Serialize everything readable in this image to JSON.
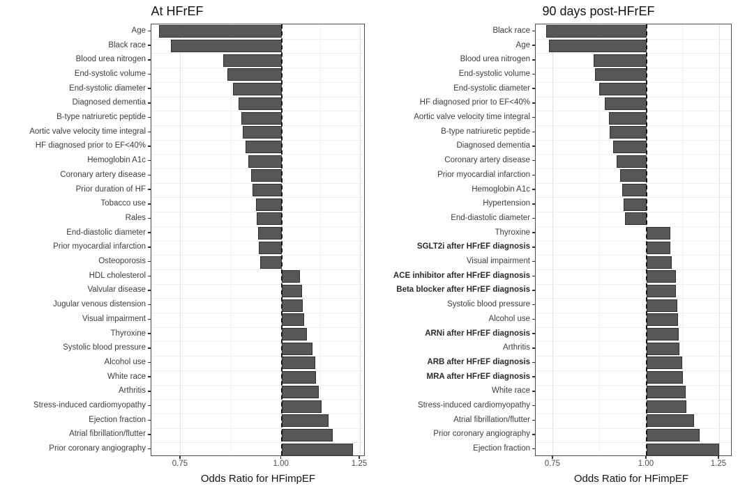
{
  "figure": {
    "background": "#ffffff",
    "bar_fill": "#575757",
    "bar_outline": "#2f2f2f",
    "panel_border_color": "#4d4d4d",
    "grid_major_color": "#e2e2e2",
    "grid_minor_color": "#f1f1f1",
    "baseline_dash_color": "#141414",
    "axis_text_color": "#4d4d4d",
    "category_text_color": "#3d3d3d",
    "title_color": "#141414"
  },
  "chart_data": [
    {
      "type": "bar",
      "orientation": "horizontal",
      "title": "At HFrEF",
      "xlabel": "Odds Ratio for HFimpEF",
      "x_scale": "log",
      "baseline": 1.0,
      "xlim": [
        0.69,
        1.27
      ],
      "x_ticks": [
        0.75,
        1.0,
        1.25
      ],
      "x_tick_labels": [
        "0.75",
        "1.00",
        "1.25"
      ],
      "x_minor_breaks": [
        0.866,
        1.118
      ],
      "grid": true,
      "legend": "none",
      "categories": [
        "Age",
        "Black race",
        "Blood urea nitrogen",
        "End-systolic volume",
        "End-systolic diameter",
        "Diagnosed dementia",
        "B-type natriuretic peptide",
        "Aortic valve velocity time integral",
        "HF diagnosed prior to EF<40%",
        "Hemoglobin A1c",
        "Coronary artery disease",
        "Prior duration of HF",
        "Tobacco use",
        "Rales",
        "End-diastolic diameter",
        "Prior myocardial infarction",
        "Osteoporosis",
        "HDL cholesterol",
        "Valvular disease",
        "Jugular venous distension",
        "Visual impairment",
        "Thyroxine",
        "Systolic blood pressure",
        "Alcohol use",
        "White race",
        "Arthritis",
        "Stress-induced cardiomyopathy",
        "Ejection fraction",
        "Atrial fibrillation/flutter",
        "Prior coronary angiography"
      ],
      "values": [
        0.705,
        0.729,
        0.847,
        0.857,
        0.871,
        0.884,
        0.891,
        0.895,
        0.902,
        0.909,
        0.916,
        0.92,
        0.929,
        0.931,
        0.935,
        0.937,
        0.941,
        1.053,
        1.059,
        1.063,
        1.067,
        1.074,
        1.093,
        1.1,
        1.102,
        1.111,
        1.12,
        1.143,
        1.156,
        1.225
      ],
      "bold_categories": []
    },
    {
      "type": "bar",
      "orientation": "horizontal",
      "title": "90 days post-HFrEF",
      "xlabel": "Odds Ratio for HFimpEF",
      "x_scale": "log",
      "baseline": 1.0,
      "xlim": [
        0.711,
        1.302
      ],
      "x_ticks": [
        0.75,
        1.0,
        1.25
      ],
      "x_tick_labels": [
        "0.75",
        "1.00",
        "1.25"
      ],
      "x_minor_breaks": [
        0.866,
        1.118
      ],
      "grid": true,
      "legend": "none",
      "categories": [
        "Black race",
        "Age",
        "Blood urea nitrogen",
        "End-systolic volume",
        "End-systolic diameter",
        "HF diagnosed prior to EF<40%",
        "Aortic valve velocity time integral",
        "B-type natriuretic peptide",
        "Diagnosed dementia",
        "Coronary artery disease",
        "Prior myocardial infarction",
        "Hemoglobin A1c",
        "Hypertension",
        "End-diastolic diameter",
        "Thyroxine",
        "SGLT2i after HFrEF diagnosis",
        "Visual impairment",
        "ACE inhibitor after HFrEF diagnosis",
        "Beta blocker after HFrEF diagnosis",
        "Systolic blood pressure",
        "Alcohol use",
        "ARNi after HFrEF diagnosis",
        "Arthritis",
        "ARB after HFrEF diagnosis",
        "MRA after HFrEF diagnosis",
        "White race",
        "Stress-induced cardiomyopathy",
        "Atrial fibrillation/flutter",
        "Prior coronary angiography",
        "Ejection fraction"
      ],
      "values": [
        0.735,
        0.74,
        0.849,
        0.854,
        0.864,
        0.88,
        0.89,
        0.893,
        0.902,
        0.912,
        0.922,
        0.928,
        0.932,
        0.935,
        1.075,
        1.076,
        1.08,
        1.094,
        1.095,
        1.098,
        1.102,
        1.104,
        1.107,
        1.115,
        1.118,
        1.128,
        1.131,
        1.158,
        1.178,
        1.25
      ],
      "bold_categories": [
        "SGLT2i after HFrEF diagnosis",
        "ACE inhibitor after HFrEF diagnosis",
        "Beta blocker after HFrEF diagnosis",
        "ARNi after HFrEF diagnosis",
        "ARB after HFrEF diagnosis",
        "MRA after HFrEF diagnosis"
      ]
    }
  ]
}
